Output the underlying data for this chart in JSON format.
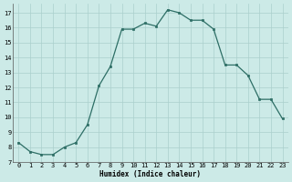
{
  "x": [
    0,
    1,
    2,
    3,
    4,
    5,
    6,
    7,
    8,
    9,
    10,
    11,
    12,
    13,
    14,
    15,
    16,
    17,
    18,
    19,
    20,
    21,
    22,
    23
  ],
  "y": [
    8.3,
    7.7,
    7.5,
    7.5,
    8.0,
    8.3,
    9.5,
    12.1,
    13.4,
    15.9,
    15.9,
    16.3,
    16.1,
    17.2,
    17.0,
    16.5,
    16.5,
    15.9,
    13.5,
    13.5,
    12.8,
    11.2,
    11.2,
    9.9
  ],
  "line_color": "#2d6e65",
  "marker": "s",
  "marker_size": 2.0,
  "line_width": 0.9,
  "background_color": "#cceae7",
  "grid_color": "#aacfcc",
  "xlabel": "Humidex (Indice chaleur)",
  "xlabel_fontsize": 5.5,
  "xlim": [
    -0.5,
    23.5
  ],
  "ylim": [
    7,
    17.6
  ],
  "yticks": [
    7,
    8,
    9,
    10,
    11,
    12,
    13,
    14,
    15,
    16,
    17
  ],
  "xticks": [
    0,
    1,
    2,
    3,
    4,
    5,
    6,
    7,
    8,
    9,
    10,
    11,
    12,
    13,
    14,
    15,
    16,
    17,
    18,
    19,
    20,
    21,
    22,
    23
  ],
  "tick_fontsize": 5.0
}
